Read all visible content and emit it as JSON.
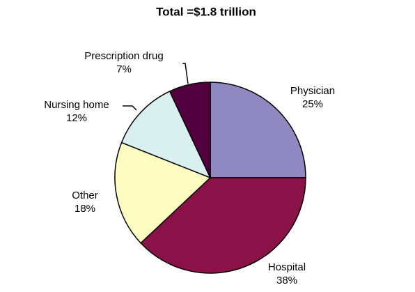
{
  "chart_data": {
    "type": "pie",
    "title": "Total =$1.8 trillion",
    "categories": [
      "Physician",
      "Hospital",
      "Other",
      "Nursing home",
      "Prescription drug"
    ],
    "values": [
      25,
      38,
      18,
      12,
      7
    ],
    "value_labels": [
      "25%",
      "38%",
      "18%",
      "12%",
      "7%"
    ],
    "colors": [
      "#9088c0",
      "#8a1249",
      "#fdfdc2",
      "#d9eff0",
      "#52003f"
    ]
  }
}
